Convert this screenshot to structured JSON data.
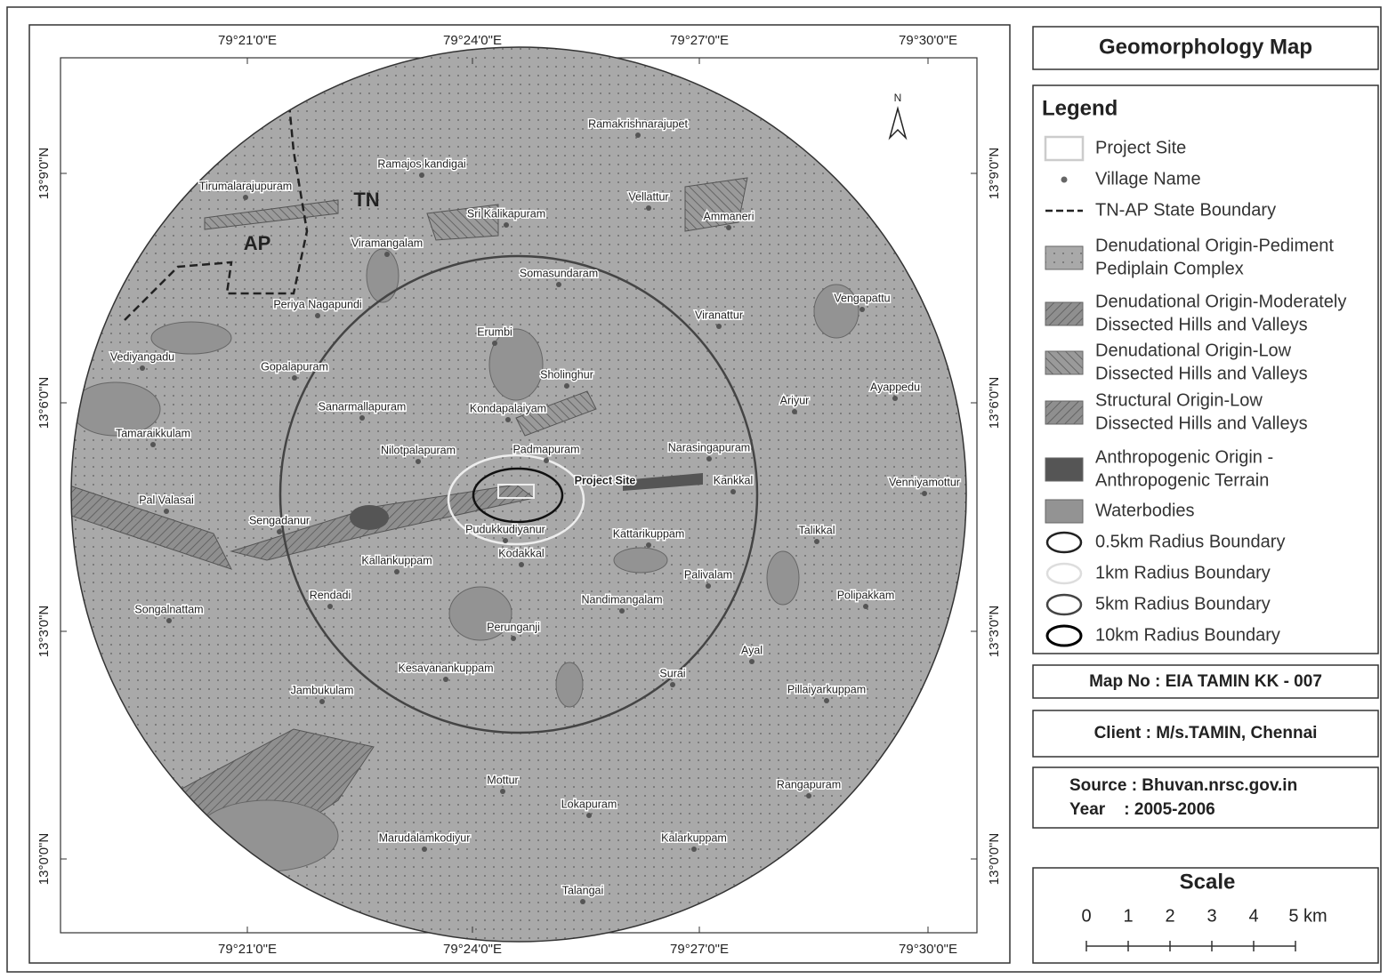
{
  "map": {
    "lon_labels": [
      "79°21'0\"E",
      "79°24'0\"E",
      "79°27'0\"E",
      "79°30'0\"E"
    ],
    "lat_labels": [
      "13°9'0\"N",
      "13°6'0\"N",
      "13°3'0\"N",
      "13°0'0\"N"
    ],
    "north": "N",
    "state_labels": [
      "TN",
      "AP"
    ],
    "project_site": "Project Site",
    "villages": [
      "Ramakrishnarajupet",
      "Ramajos kandigai",
      "Tirumalarajupuram",
      "Sri Kalikapuram",
      "Vellattur",
      "Ammaneri",
      "Viramangalam",
      "Somasundaram",
      "Periya Nagapundi",
      "Vengapattu",
      "Viranattur",
      "Erumbi",
      "Vediyangadu",
      "Gopalapuram",
      "Sholinghur",
      "Ayappedu",
      "Ariyur",
      "Sanarmallapuram",
      "Kondapalaiyam",
      "Tamaraikkulam",
      "Nilotpalapuram",
      "Padmapuram",
      "Narasingapuram",
      "Kankkal",
      "Venniyamottur",
      "Pal Valasai",
      "Sengadanur",
      "Pudukkudiyanur",
      "Kattarikuppam",
      "Talikkal",
      "Kodakkal",
      "Kallankuppam",
      "Palivalam",
      "Rendadi",
      "Nandimangalam",
      "Polipakkam",
      "Songalnattam",
      "Perunganji",
      "Ayal",
      "Kesavanankuppam",
      "Surai",
      "Jambukulam",
      "Pillaiyarkuppam",
      "Mottur",
      "Rangapuram",
      "Lokapuram",
      "Marudalamkodiyur",
      "Kalarkuppam",
      "Talangai"
    ]
  },
  "panel": {
    "title": "Geomorphology Map",
    "legend": {
      "title": "Legend",
      "items": [
        [
          "Project Site"
        ],
        [
          "Village Name"
        ],
        [
          "TN-AP State Boundary"
        ],
        [
          "Denudational Origin-Pediment",
          "Pediplain Complex"
        ],
        [
          "Denudational Origin-Moderately",
          "Dissected Hills and Valleys"
        ],
        [
          "Denudational Origin-Low",
          "Dissected Hills and Valleys"
        ],
        [
          "Structural Origin-Low",
          "Dissected Hills and Valleys"
        ],
        [
          "Anthropogenic Origin -",
          "Anthropogenic Terrain"
        ],
        [
          "Waterbodies"
        ],
        [
          "0.5km Radius Boundary"
        ],
        [
          "1km Radius Boundary"
        ],
        [
          "5km Radius Boundary"
        ],
        [
          "10km Radius Boundary"
        ]
      ]
    },
    "map_no": "Map No : EIA TAMIN KK - 007",
    "client": "Client : M/s.TAMIN, Chennai",
    "source": "Source : Bhuvan.nrsc.gov.in",
    "year": "Year    : 2005-2006",
    "scale": {
      "title": "Scale",
      "ticks": [
        "0",
        "1",
        "2",
        "3",
        "4",
        "5 km"
      ]
    }
  }
}
